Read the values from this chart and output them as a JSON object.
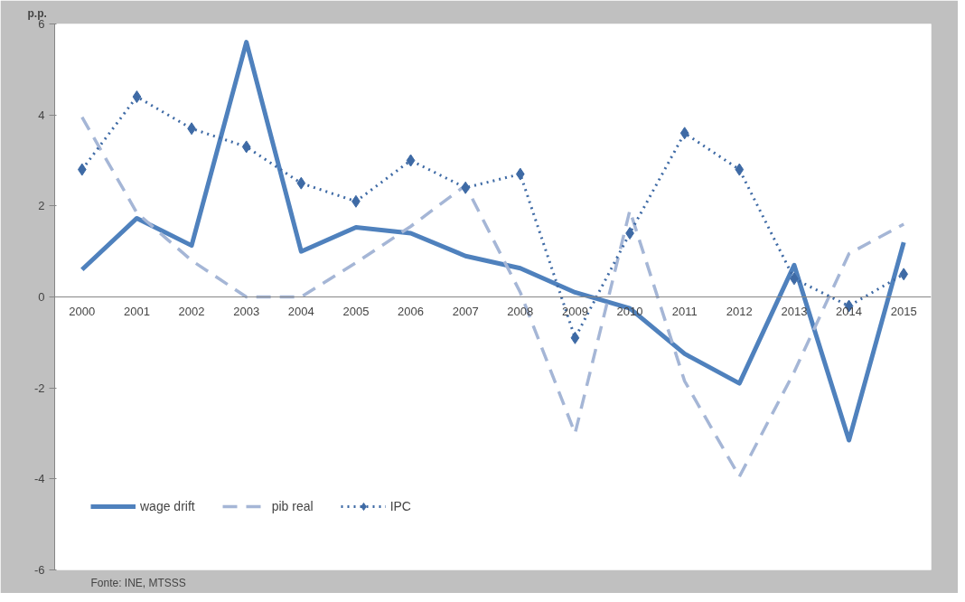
{
  "chart_data": {
    "type": "line",
    "ylabel": "p.p.",
    "categories": [
      "2000",
      "2001",
      "2002",
      "2003",
      "2004",
      "2005",
      "2006",
      "2007",
      "2008",
      "2009",
      "2010",
      "2011",
      "2012",
      "2013",
      "2014",
      "2015"
    ],
    "series": [
      {
        "name": "wage drift",
        "color": "#4f81bd",
        "line_style": "solid",
        "marker": "none",
        "values": [
          0.6,
          1.73,
          1.13,
          5.6,
          1.0,
          1.53,
          1.4,
          0.9,
          0.63,
          0.1,
          -0.25,
          -1.25,
          -1.9,
          0.7,
          -3.15,
          1.2
        ]
      },
      {
        "name": "pib real",
        "color": "#a5b6d6",
        "line_style": "dashed",
        "marker": "none",
        "values": [
          3.95,
          1.85,
          0.8,
          0.0,
          0.0,
          0.75,
          1.55,
          2.45,
          0.1,
          -3.0,
          1.9,
          -1.85,
          -3.95,
          -1.65,
          0.95,
          1.6
        ]
      },
      {
        "name": "IPC",
        "color": "#3e6aa5",
        "line_style": "dotted",
        "marker": "diamond",
        "values": [
          2.8,
          4.4,
          3.7,
          3.3,
          2.5,
          2.1,
          3.0,
          2.4,
          2.7,
          -0.9,
          1.4,
          3.6,
          2.8,
          0.4,
          -0.2,
          0.5
        ]
      }
    ],
    "ylim": [
      -6,
      6
    ],
    "yticks": [
      -6,
      -4,
      -2,
      0,
      2,
      4,
      6
    ],
    "grid": false,
    "legend": "bottom left",
    "annotations": [
      "Fonte: INE, MTSSS"
    ]
  }
}
